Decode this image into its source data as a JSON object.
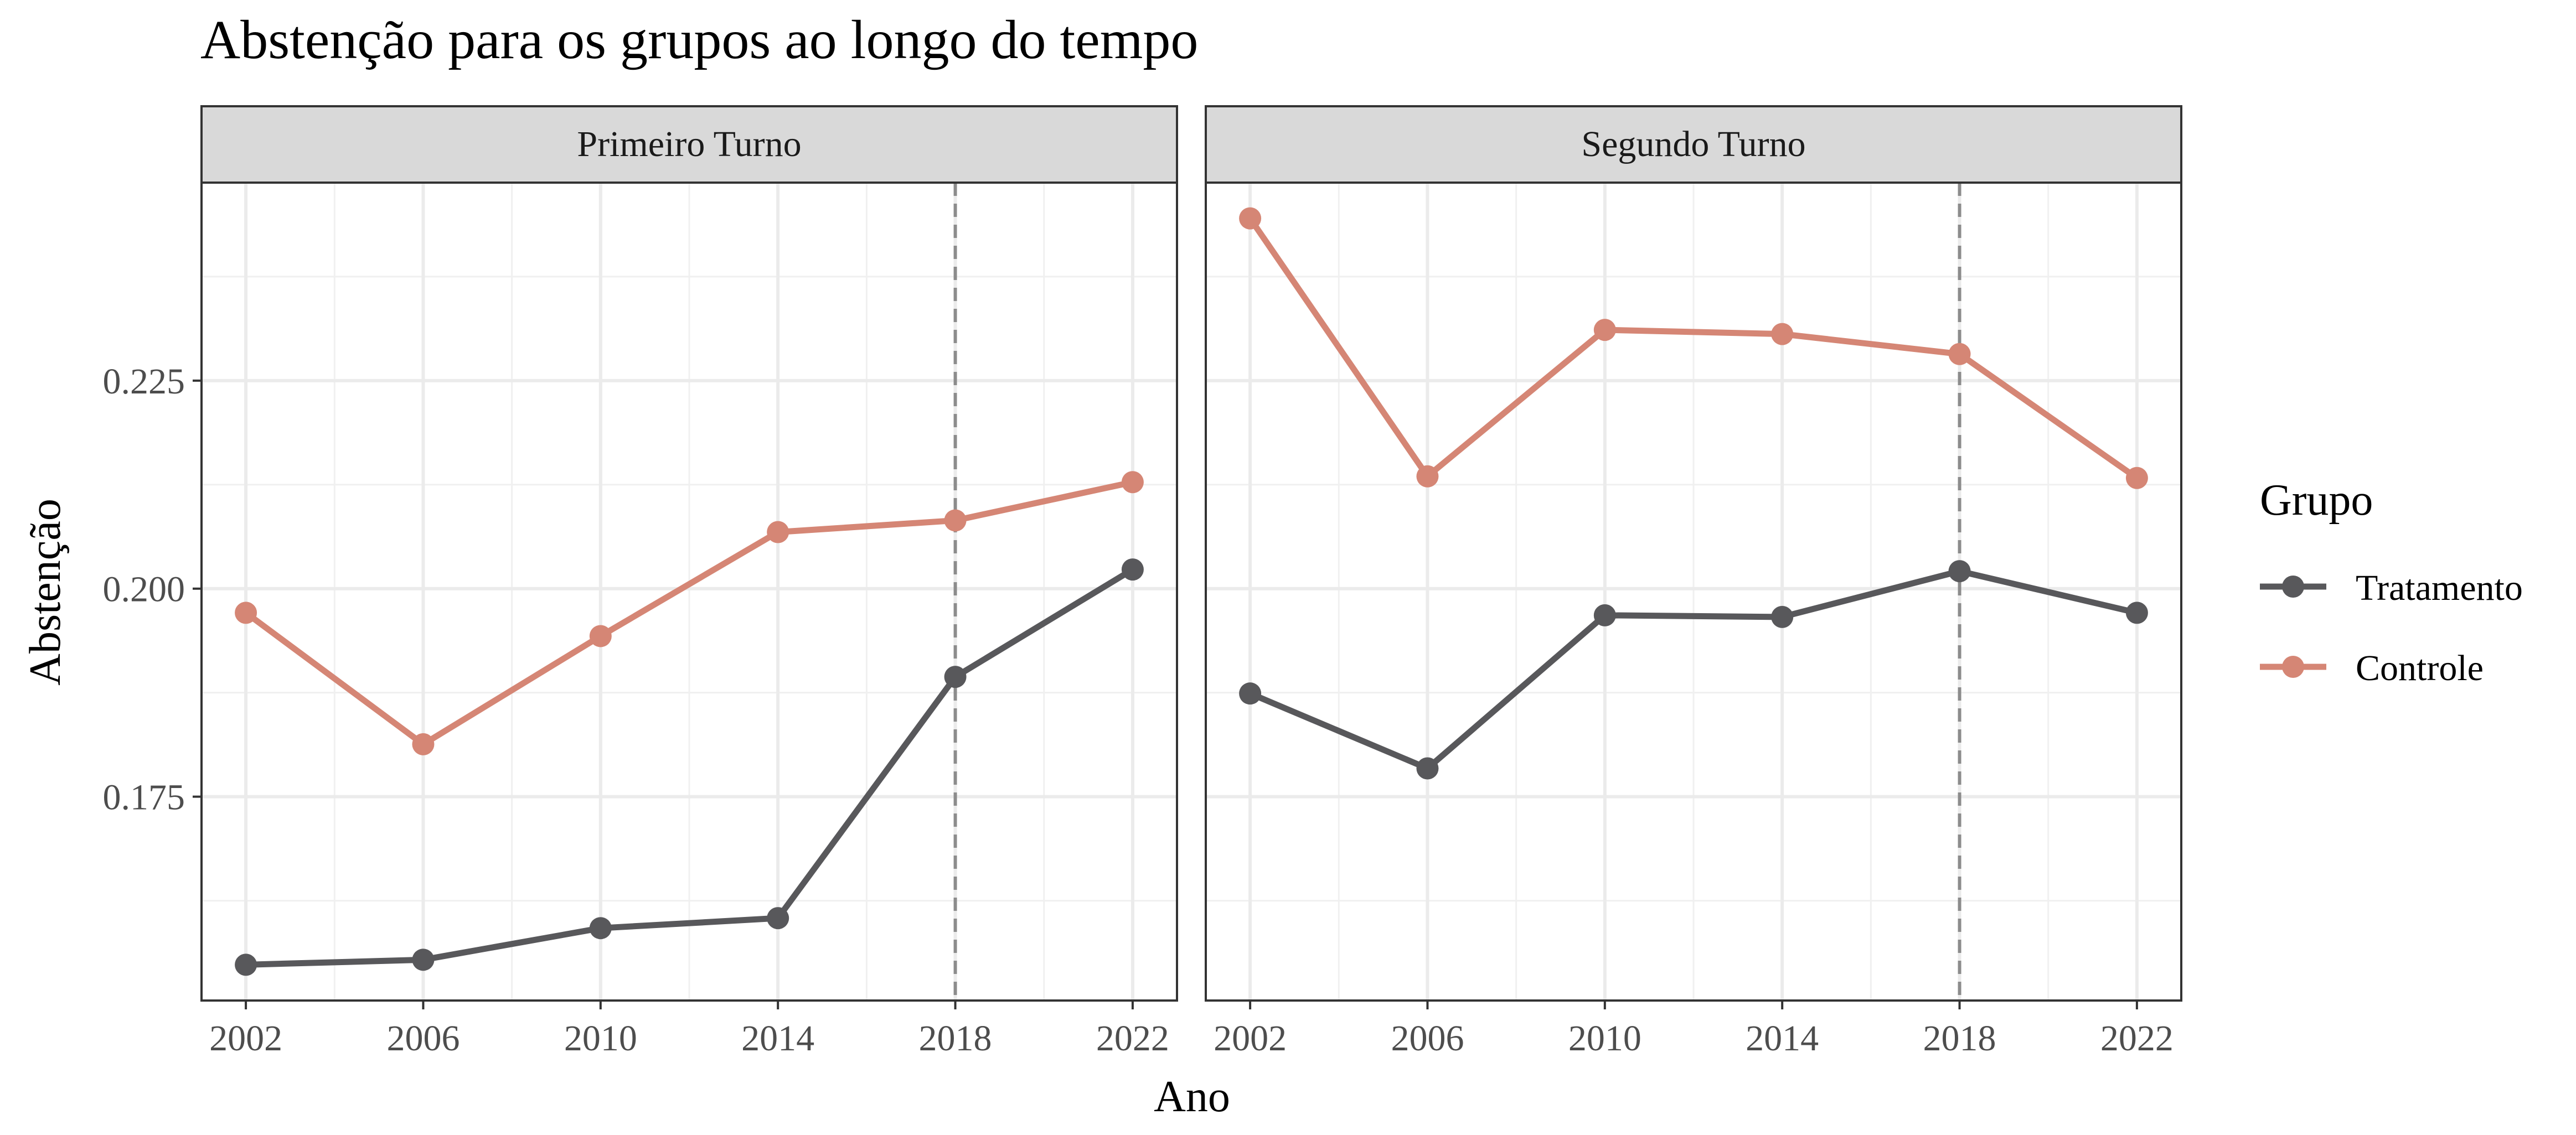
{
  "chart_data": {
    "type": "line",
    "title": "Abstenção para os grupos ao longo do tempo",
    "xlabel": "Ano",
    "ylabel": "Abstenção",
    "x_ticks": [
      2002,
      2006,
      2010,
      2014,
      2018,
      2022
    ],
    "y_ticks": [
      0.175,
      0.2,
      0.225
    ],
    "y_tick_labels": [
      "0.175",
      "0.200",
      "0.225"
    ],
    "xlim": [
      2001,
      2023
    ],
    "ylim": [
      0.1505,
      0.2488
    ],
    "reference_line_x": 2018,
    "grid": true,
    "legend": {
      "title": "Grupo",
      "placement": "right",
      "entries": [
        "Tratamento",
        "Controle"
      ]
    },
    "colors": {
      "Tratamento": "#58585b",
      "Controle": "#d58675",
      "strip_fill": "#d9d9d9",
      "reference_line": "#8c8c8c"
    },
    "panels": [
      {
        "label": "Primeiro Turno",
        "series": [
          {
            "name": "Tratamento",
            "x": [
              2002,
              2006,
              2010,
              2014,
              2018,
              2022
            ],
            "y": [
              0.1548,
              0.1554,
              0.1592,
              0.1604,
              0.1894,
              0.2023
            ]
          },
          {
            "name": "Controle",
            "x": [
              2002,
              2006,
              2010,
              2014,
              2018,
              2022
            ],
            "y": [
              0.1971,
              0.1813,
              0.1943,
              0.2068,
              0.2082,
              0.2128
            ]
          }
        ]
      },
      {
        "label": "Segundo Turno",
        "series": [
          {
            "name": "Tratamento",
            "x": [
              2002,
              2006,
              2010,
              2014,
              2018,
              2022
            ],
            "y": [
              0.1874,
              0.1784,
              0.1968,
              0.1966,
              0.2021,
              0.1971
            ]
          },
          {
            "name": "Controle",
            "x": [
              2002,
              2006,
              2010,
              2014,
              2018,
              2022
            ],
            "y": [
              0.2445,
              0.2135,
              0.2311,
              0.2306,
              0.2282,
              0.2133
            ]
          }
        ]
      }
    ]
  }
}
